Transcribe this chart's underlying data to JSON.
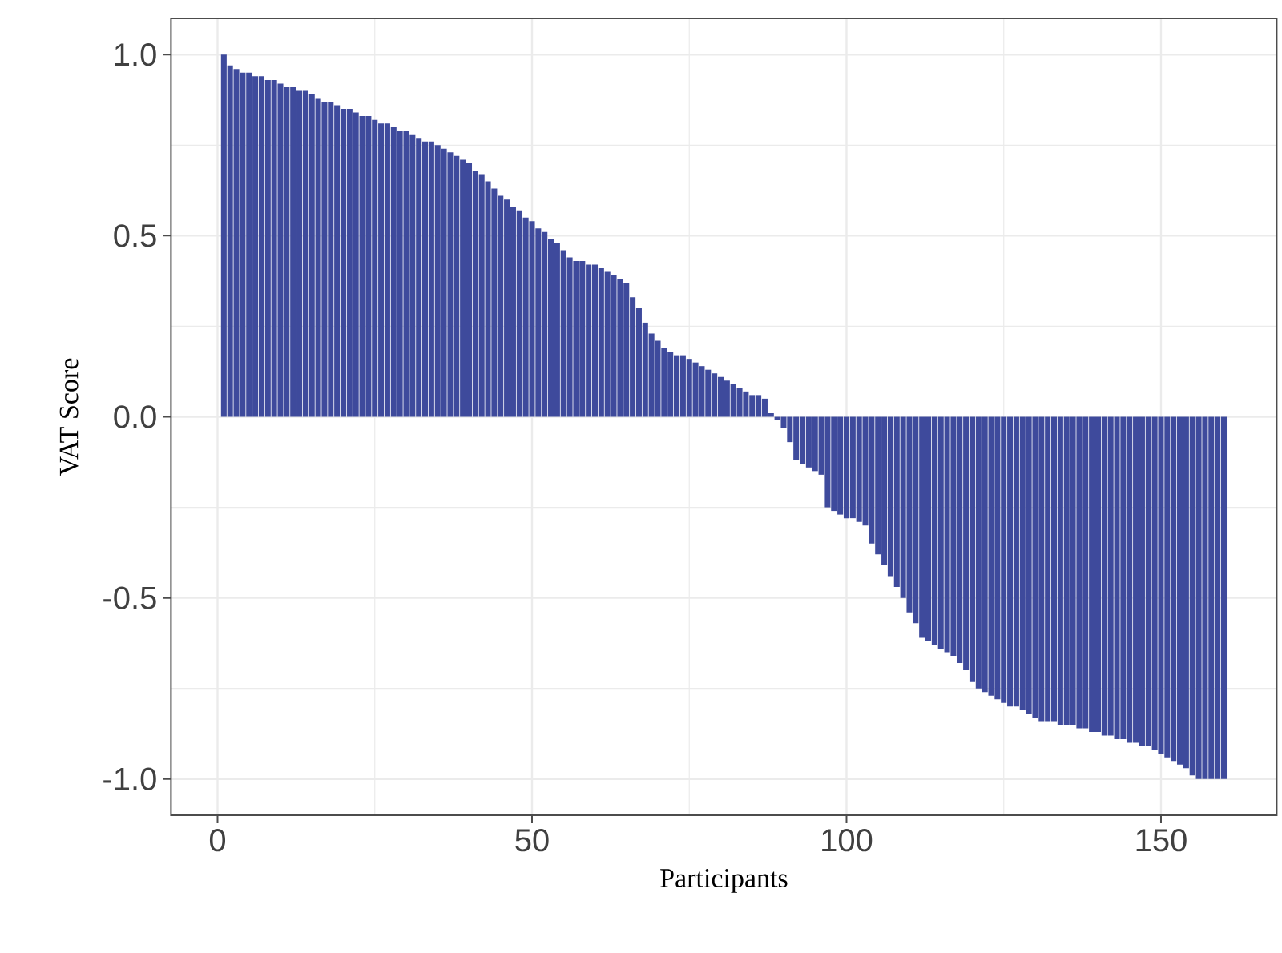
{
  "chart_data": {
    "type": "bar",
    "xlabel": "Participants",
    "ylabel": "VAT Score",
    "x": [
      1,
      2,
      3,
      4,
      5,
      6,
      7,
      8,
      9,
      10,
      11,
      12,
      13,
      14,
      15,
      16,
      17,
      18,
      19,
      20,
      21,
      22,
      23,
      24,
      25,
      26,
      27,
      28,
      29,
      30,
      31,
      32,
      33,
      34,
      35,
      36,
      37,
      38,
      39,
      40,
      41,
      42,
      43,
      44,
      45,
      46,
      47,
      48,
      49,
      50,
      51,
      52,
      53,
      54,
      55,
      56,
      57,
      58,
      59,
      60,
      61,
      62,
      63,
      64,
      65,
      66,
      67,
      68,
      69,
      70,
      71,
      72,
      73,
      74,
      75,
      76,
      77,
      78,
      79,
      80,
      81,
      82,
      83,
      84,
      85,
      86,
      87,
      88,
      89,
      90,
      91,
      92,
      93,
      94,
      95,
      96,
      97,
      98,
      99,
      100,
      101,
      102,
      103,
      104,
      105,
      106,
      107,
      108,
      109,
      110,
      111,
      112,
      113,
      114,
      115,
      116,
      117,
      118,
      119,
      120,
      121,
      122,
      123,
      124,
      125,
      126,
      127,
      128,
      129,
      130,
      131,
      132,
      133,
      134,
      135,
      136,
      137,
      138,
      139,
      140,
      141,
      142,
      143,
      144,
      145,
      146,
      147,
      148,
      149,
      150,
      151,
      152,
      153,
      154,
      155,
      156,
      157,
      158,
      159,
      160
    ],
    "values": [
      1.0,
      0.97,
      0.96,
      0.95,
      0.95,
      0.94,
      0.94,
      0.93,
      0.93,
      0.92,
      0.91,
      0.91,
      0.9,
      0.9,
      0.89,
      0.88,
      0.87,
      0.87,
      0.86,
      0.85,
      0.85,
      0.84,
      0.83,
      0.83,
      0.82,
      0.81,
      0.81,
      0.8,
      0.79,
      0.79,
      0.78,
      0.77,
      0.76,
      0.76,
      0.75,
      0.74,
      0.73,
      0.72,
      0.71,
      0.7,
      0.68,
      0.67,
      0.65,
      0.63,
      0.61,
      0.6,
      0.58,
      0.57,
      0.55,
      0.54,
      0.52,
      0.51,
      0.49,
      0.48,
      0.46,
      0.44,
      0.43,
      0.43,
      0.42,
      0.42,
      0.41,
      0.4,
      0.39,
      0.38,
      0.37,
      0.33,
      0.3,
      0.26,
      0.23,
      0.21,
      0.19,
      0.18,
      0.17,
      0.17,
      0.16,
      0.15,
      0.14,
      0.13,
      0.12,
      0.11,
      0.1,
      0.09,
      0.08,
      0.07,
      0.06,
      0.06,
      0.05,
      0.01,
      -0.01,
      -0.03,
      -0.07,
      -0.12,
      -0.13,
      -0.14,
      -0.15,
      -0.16,
      -0.25,
      -0.26,
      -0.27,
      -0.28,
      -0.28,
      -0.29,
      -0.3,
      -0.35,
      -0.38,
      -0.41,
      -0.44,
      -0.47,
      -0.5,
      -0.54,
      -0.57,
      -0.61,
      -0.62,
      -0.63,
      -0.64,
      -0.65,
      -0.66,
      -0.68,
      -0.7,
      -0.73,
      -0.75,
      -0.76,
      -0.77,
      -0.78,
      -0.79,
      -0.8,
      -0.8,
      -0.81,
      -0.82,
      -0.83,
      -0.84,
      -0.84,
      -0.84,
      -0.85,
      -0.85,
      -0.85,
      -0.86,
      -0.86,
      -0.87,
      -0.87,
      -0.88,
      -0.88,
      -0.89,
      -0.89,
      -0.9,
      -0.9,
      -0.91,
      -0.91,
      -0.92,
      -0.93,
      -0.94,
      -0.95,
      -0.96,
      -0.97,
      -0.99,
      -1.0,
      -1.0,
      -1.0,
      -1.0,
      -1.0
    ],
    "color": "#3e4a9c",
    "xlim": [
      -7.4,
      168.4
    ],
    "ylim": [
      -1.1,
      1.1
    ],
    "xticks": [
      0,
      50,
      100,
      150
    ],
    "yticks": [
      {
        "value": -1.0,
        "label": "-1.0"
      },
      {
        "value": -0.5,
        "label": "-0.5"
      },
      {
        "value": 0.0,
        "label": "0.0"
      },
      {
        "value": 0.5,
        "label": "0.5"
      },
      {
        "value": 1.0,
        "label": "1.0"
      }
    ],
    "grid": true
  }
}
